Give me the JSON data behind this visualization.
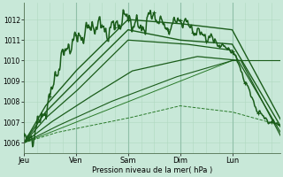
{
  "background_color": "#c8e8d8",
  "plot_bg_color": "#c8e8d8",
  "grid_color_minor": "#b0d8c0",
  "grid_color_major": "#90c0a8",
  "line_dark": "#1a5c1a",
  "line_mid": "#2a7a2a",
  "ylabel_text": "Pression niveau de la mer( hPa )",
  "day_labels": [
    "Jeu",
    "Ven",
    "Sam",
    "Dim",
    "Lun"
  ],
  "day_positions": [
    0,
    48,
    96,
    144,
    192
  ],
  "ylim": [
    1005.5,
    1012.8
  ],
  "yticks": [
    1006,
    1007,
    1008,
    1009,
    1010,
    1011,
    1012
  ],
  "xlim": [
    0,
    236
  ],
  "total_hours": 240
}
